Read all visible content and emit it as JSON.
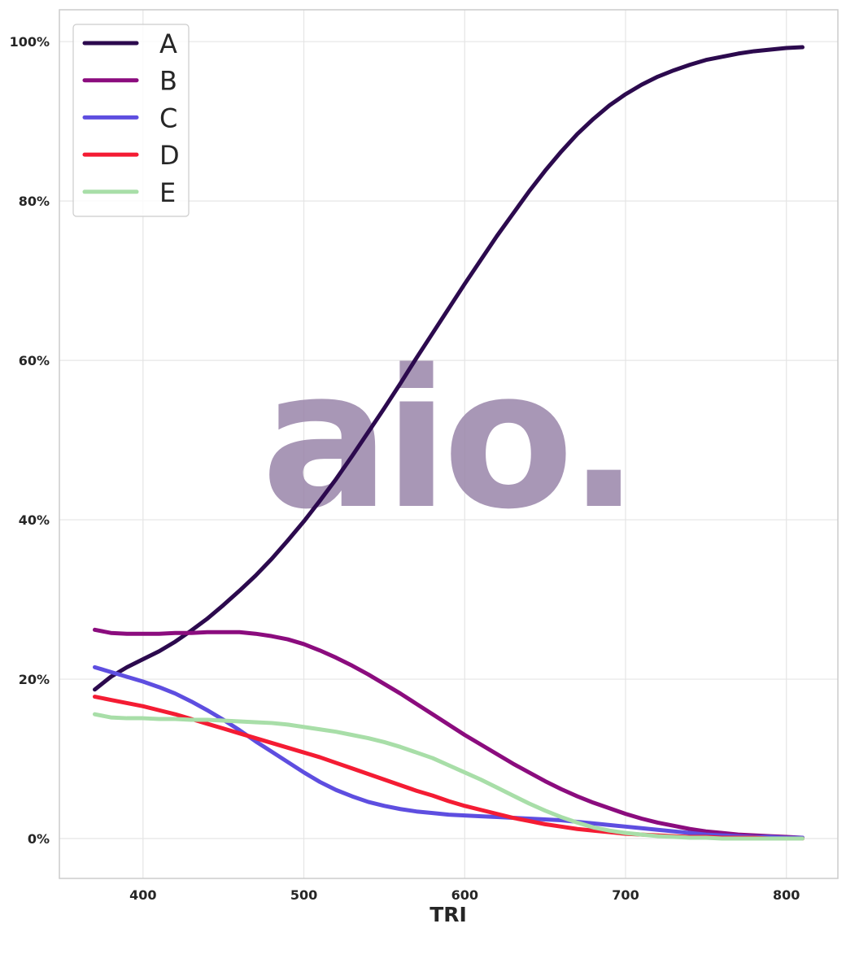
{
  "chart_data": {
    "type": "line",
    "xlabel": "TRI",
    "ylabel": "",
    "xlim": [
      348,
      832
    ],
    "ylim": [
      -0.05,
      1.04
    ],
    "xticks": [
      400,
      500,
      600,
      700,
      800
    ],
    "yticks": [
      0,
      0.2,
      0.4,
      0.6,
      0.8,
      1.0
    ],
    "y_format": "percent",
    "grid": true,
    "legend_position": "top-left",
    "x": [
      370,
      380,
      390,
      400,
      410,
      420,
      430,
      440,
      450,
      460,
      470,
      480,
      490,
      500,
      510,
      520,
      530,
      540,
      550,
      560,
      570,
      580,
      590,
      600,
      610,
      620,
      630,
      640,
      650,
      660,
      670,
      680,
      690,
      700,
      710,
      720,
      730,
      740,
      750,
      760,
      770,
      780,
      790,
      800,
      810
    ],
    "series": [
      {
        "name": "A",
        "color": "#2c0a4e",
        "values": [
          0.187,
          0.203,
          0.215,
          0.225,
          0.235,
          0.247,
          0.261,
          0.276,
          0.293,
          0.311,
          0.33,
          0.351,
          0.374,
          0.398,
          0.424,
          0.451,
          0.48,
          0.51,
          0.54,
          0.571,
          0.603,
          0.634,
          0.665,
          0.696,
          0.726,
          0.756,
          0.784,
          0.812,
          0.838,
          0.862,
          0.884,
          0.903,
          0.92,
          0.934,
          0.946,
          0.956,
          0.964,
          0.971,
          0.977,
          0.981,
          0.985,
          0.988,
          0.99,
          0.992,
          0.993
        ]
      },
      {
        "name": "B",
        "color": "#8b0c7e",
        "values": [
          0.262,
          0.258,
          0.257,
          0.257,
          0.257,
          0.258,
          0.258,
          0.259,
          0.259,
          0.259,
          0.257,
          0.254,
          0.25,
          0.244,
          0.236,
          0.227,
          0.217,
          0.206,
          0.194,
          0.182,
          0.169,
          0.156,
          0.143,
          0.13,
          0.118,
          0.106,
          0.094,
          0.083,
          0.072,
          0.062,
          0.053,
          0.045,
          0.038,
          0.031,
          0.025,
          0.02,
          0.016,
          0.012,
          0.009,
          0.007,
          0.005,
          0.004,
          0.003,
          0.002,
          0.001
        ]
      },
      {
        "name": "C",
        "color": "#5e4ee0",
        "values": [
          0.215,
          0.209,
          0.203,
          0.197,
          0.19,
          0.182,
          0.172,
          0.161,
          0.149,
          0.136,
          0.122,
          0.109,
          0.096,
          0.083,
          0.071,
          0.061,
          0.053,
          0.046,
          0.041,
          0.037,
          0.034,
          0.032,
          0.03,
          0.029,
          0.028,
          0.027,
          0.026,
          0.025,
          0.024,
          0.023,
          0.021,
          0.019,
          0.017,
          0.015,
          0.013,
          0.011,
          0.009,
          0.007,
          0.005,
          0.004,
          0.003,
          0.002,
          0.002,
          0.001,
          0.001
        ]
      },
      {
        "name": "D",
        "color": "#f41c33",
        "values": [
          0.178,
          0.174,
          0.17,
          0.166,
          0.161,
          0.156,
          0.15,
          0.144,
          0.138,
          0.132,
          0.126,
          0.12,
          0.114,
          0.108,
          0.102,
          0.095,
          0.088,
          0.081,
          0.074,
          0.067,
          0.06,
          0.054,
          0.047,
          0.041,
          0.036,
          0.031,
          0.026,
          0.022,
          0.018,
          0.015,
          0.012,
          0.01,
          0.008,
          0.006,
          0.005,
          0.004,
          0.003,
          0.002,
          0.002,
          0.001,
          0.001,
          0.001,
          0.0,
          0.0,
          0.0
        ]
      },
      {
        "name": "E",
        "color": "#a8dea8",
        "values": [
          0.156,
          0.152,
          0.151,
          0.151,
          0.15,
          0.15,
          0.149,
          0.149,
          0.148,
          0.147,
          0.146,
          0.145,
          0.143,
          0.14,
          0.137,
          0.134,
          0.13,
          0.126,
          0.121,
          0.115,
          0.108,
          0.101,
          0.092,
          0.083,
          0.074,
          0.064,
          0.054,
          0.044,
          0.035,
          0.027,
          0.02,
          0.014,
          0.01,
          0.007,
          0.005,
          0.003,
          0.002,
          0.001,
          0.001,
          0.0,
          0.0,
          0.0,
          0.0,
          0.0,
          0.0
        ]
      }
    ]
  },
  "watermark": {
    "text": "aio.",
    "color": "#9a85aa"
  },
  "colors": {
    "grid": "#e5e5e5",
    "spine": "#cccccc",
    "text": "#262626"
  }
}
